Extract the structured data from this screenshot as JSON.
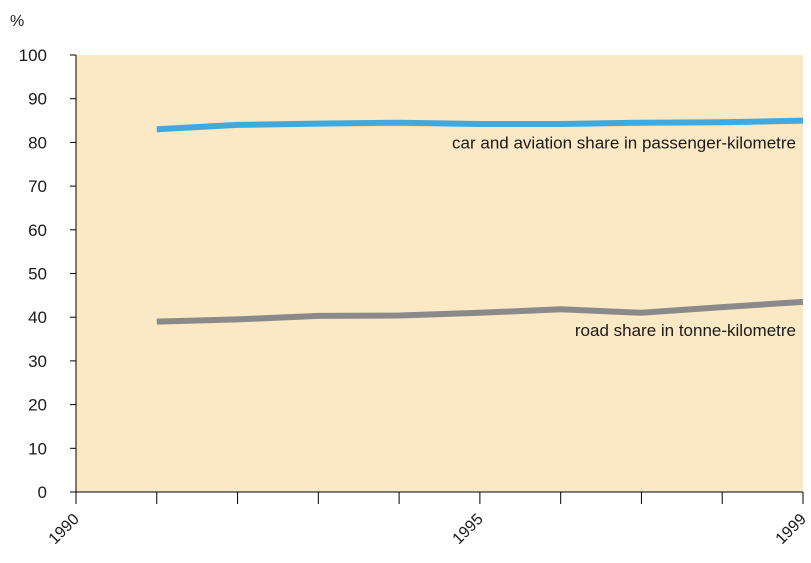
{
  "chart_data": {
    "type": "line",
    "ylabel": "%",
    "ylim": [
      0,
      100
    ],
    "xlim": [
      1990,
      1999
    ],
    "y_ticks": [
      0,
      10,
      20,
      30,
      40,
      50,
      60,
      70,
      80,
      90,
      100
    ],
    "x_tick_labels": [
      "1990",
      "1995",
      "1999"
    ],
    "x_minor_ticks": [
      1991,
      1992,
      1993,
      1994,
      1996,
      1997,
      1998
    ],
    "grid": false,
    "plot_background": "#fbe8c4",
    "series": [
      {
        "name": "car and aviation share in passenger-kilometre",
        "color": "#3fa9e0",
        "x": [
          1991,
          1992,
          1993,
          1994,
          1995,
          1996,
          1997,
          1998,
          1999
        ],
        "values": [
          83.0,
          84.0,
          84.3,
          84.5,
          84.2,
          84.2,
          84.5,
          84.6,
          85.0
        ]
      },
      {
        "name": "road share in tonne-kilometre",
        "color": "#8a8a8a",
        "x": [
          1991,
          1992,
          1993,
          1994,
          1995,
          1996,
          1997,
          1998,
          1999
        ],
        "values": [
          39.0,
          39.5,
          40.3,
          40.4,
          41.0,
          41.8,
          41.0,
          42.3,
          43.5
        ]
      }
    ]
  }
}
